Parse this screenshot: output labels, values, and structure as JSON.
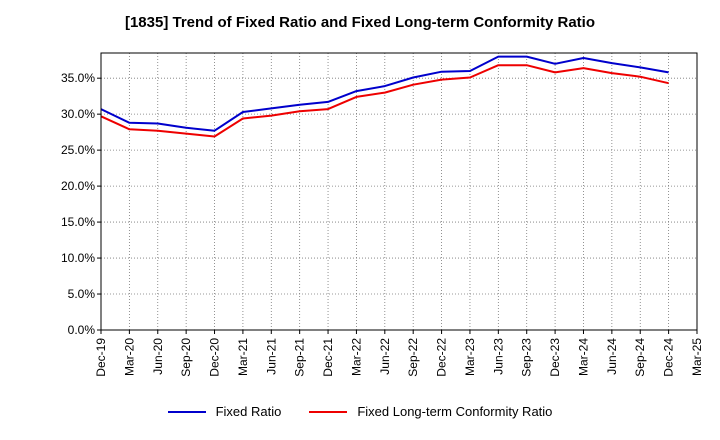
{
  "chart_data": {
    "type": "line",
    "title": "[1835]  Trend of Fixed Ratio and Fixed Long-term Conformity Ratio",
    "xlabel": "",
    "ylabel": "",
    "x_ticks": [
      "Dec-19",
      "Mar-20",
      "Jun-20",
      "Sep-20",
      "Dec-20",
      "Mar-21",
      "Jun-21",
      "Sep-21",
      "Dec-21",
      "Mar-22",
      "Jun-22",
      "Sep-22",
      "Dec-22",
      "Mar-23",
      "Jun-23",
      "Sep-23",
      "Dec-23",
      "Mar-24",
      "Jun-24",
      "Sep-24",
      "Dec-24",
      "Mar-25"
    ],
    "y_ticks": [
      "0.0%",
      "5.0%",
      "10.0%",
      "15.0%",
      "20.0%",
      "25.0%",
      "30.0%",
      "35.0%"
    ],
    "ylim": [
      0,
      38.5
    ],
    "grid": true,
    "legend_position": "bottom",
    "x": [
      "Dec-19",
      "Mar-20",
      "Jun-20",
      "Sep-20",
      "Dec-20",
      "Mar-21",
      "Jun-21",
      "Sep-21",
      "Dec-21",
      "Mar-22",
      "Jun-22",
      "Sep-22",
      "Dec-22",
      "Mar-23",
      "Jun-23",
      "Sep-23",
      "Dec-23",
      "Mar-24",
      "Jun-24",
      "Sep-24",
      "Dec-24"
    ],
    "series": [
      {
        "name": "Fixed Ratio",
        "color": "#0000cc",
        "values": [
          30.7,
          28.8,
          28.7,
          28.1,
          27.7,
          30.3,
          30.8,
          31.3,
          31.7,
          33.2,
          33.9,
          35.1,
          35.9,
          36.0,
          38.0,
          38.0,
          37.0,
          37.8,
          37.1,
          36.5,
          35.8
        ]
      },
      {
        "name": "Fixed Long-term Conformity Ratio",
        "color": "#ee0000",
        "values": [
          29.7,
          27.9,
          27.7,
          27.3,
          26.9,
          29.4,
          29.8,
          30.4,
          30.7,
          32.4,
          33.0,
          34.1,
          34.8,
          35.1,
          36.8,
          36.8,
          35.8,
          36.4,
          35.7,
          35.2,
          34.3
        ]
      }
    ]
  }
}
